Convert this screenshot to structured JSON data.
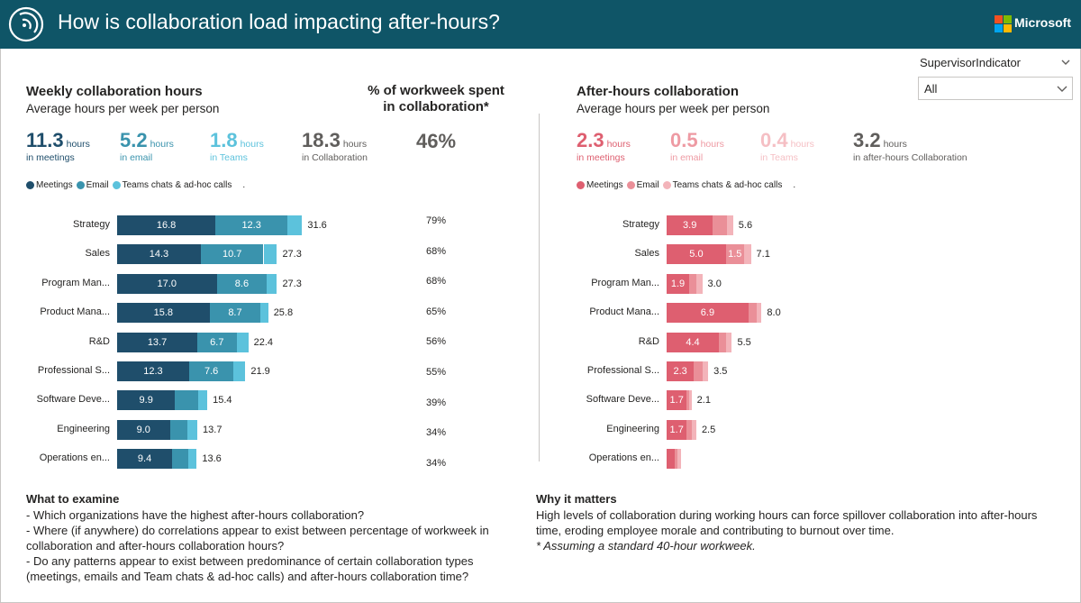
{
  "header": {
    "title": "How is collaboration load impacting after-hours?",
    "brand": "Microsoft",
    "bg_color": "#0f5567"
  },
  "slicer": {
    "label": "SupervisorIndicator",
    "value": "All"
  },
  "left": {
    "title": "Weekly collaboration hours",
    "subtitle": "Average hours per week per person",
    "pct_title_line1": "% of workweek spent",
    "pct_title_line2": "in collaboration*",
    "kpis": [
      {
        "value": "11.3",
        "unit": "hours",
        "caption": "in meetings",
        "color": "#1f4e6b"
      },
      {
        "value": "5.2",
        "unit": "hours",
        "caption": "in email",
        "color": "#3a93ad"
      },
      {
        "value": "1.8",
        "unit": "hours",
        "caption": "in Teams",
        "color": "#5cc2dc"
      },
      {
        "value": "18.3",
        "unit": "hours",
        "caption": "in Collaboration",
        "color": "#605e5c"
      }
    ],
    "pct_kpi": "46%",
    "legend": [
      {
        "label": "Meetings",
        "color": "#1f4e6b"
      },
      {
        "label": "Email",
        "color": "#3a93ad"
      },
      {
        "label": "Teams chats & ad-hoc calls",
        "color": "#5cc2dc"
      }
    ],
    "legend_trailing": "."
  },
  "right": {
    "title": "After-hours collaboration",
    "subtitle": "Average hours per week per person",
    "kpis": [
      {
        "value": "2.3",
        "unit": "hours",
        "caption": "in meetings",
        "color": "#de5f70"
      },
      {
        "value": "0.5",
        "unit": "hours",
        "caption": "in email",
        "color": "#ee9aa3"
      },
      {
        "value": "0.4",
        "unit": "hours",
        "caption": "in Teams",
        "color": "#f5bfc4"
      },
      {
        "value": "3.2",
        "unit": "hours",
        "caption": "in after-hours Collaboration",
        "color": "#605e5c"
      }
    ],
    "legend": [
      {
        "label": "Meetings",
        "color": "#de5f70"
      },
      {
        "label": "Email",
        "color": "#ea8f98"
      },
      {
        "label": "Teams chats & ad-hoc calls",
        "color": "#f3b4ba"
      }
    ],
    "legend_trailing": "."
  },
  "chart_data": [
    {
      "type": "bar",
      "title": "Weekly collaboration hours",
      "orientation": "horizontal-stacked",
      "categories": [
        "Strategy",
        "Sales",
        "Program Man...",
        "Product Mana...",
        "R&D",
        "Professional S...",
        "Software Deve...",
        "Engineering",
        "Operations en..."
      ],
      "series": [
        {
          "name": "Meetings",
          "color": "#1f4e6b",
          "values": [
            16.8,
            14.3,
            17.0,
            15.8,
            13.7,
            12.3,
            9.9,
            9.0,
            9.4
          ],
          "labels": [
            "16.8",
            "14.3",
            "17.0",
            "15.8",
            "13.7",
            "12.3",
            "9.9",
            "9.0",
            "9.4"
          ]
        },
        {
          "name": "Email",
          "color": "#3a93ad",
          "values": [
            12.3,
            10.7,
            8.6,
            8.7,
            6.7,
            7.6,
            3.9,
            3.0,
            2.8
          ],
          "labels": [
            "12.3",
            "10.7",
            "8.6",
            "8.7",
            "6.7",
            "7.6",
            "",
            "",
            ""
          ]
        },
        {
          "name": "Teams chats & ad-hoc calls",
          "color": "#5cc2dc",
          "values": [
            2.5,
            2.3,
            1.7,
            1.3,
            2.0,
            2.0,
            1.6,
            1.7,
            1.4
          ],
          "labels": [
            "",
            "",
            "",
            "",
            "",
            "",
            "",
            "",
            ""
          ]
        }
      ],
      "totals": [
        "31.6",
        "27.3",
        "27.3",
        "25.8",
        "22.4",
        "21.9",
        "15.4",
        "13.7",
        "13.6"
      ],
      "pct_workweek": [
        "79%",
        "68%",
        "68%",
        "65%",
        "56%",
        "55%",
        "39%",
        "34%",
        "34%"
      ],
      "xlim": [
        0,
        40
      ]
    },
    {
      "type": "bar",
      "title": "After-hours collaboration",
      "orientation": "horizontal-stacked",
      "categories": [
        "Strategy",
        "Sales",
        "Program Man...",
        "Product Mana...",
        "R&D",
        "Professional S...",
        "Software Deve...",
        "Engineering",
        "Operations en..."
      ],
      "series": [
        {
          "name": "Meetings",
          "color": "#de5f70",
          "values": [
            3.9,
            5.0,
            1.9,
            6.9,
            4.4,
            2.3,
            1.7,
            1.7,
            0.7
          ],
          "labels": [
            "3.9",
            "5.0",
            "1.9",
            "6.9",
            "4.4",
            "2.3",
            "1.7",
            "1.7",
            ""
          ]
        },
        {
          "name": "Email",
          "color": "#ea8f98",
          "values": [
            1.2,
            1.5,
            0.6,
            0.7,
            0.6,
            0.7,
            0.2,
            0.4,
            0.2
          ],
          "labels": [
            "",
            "1.5",
            "",
            "",
            "",
            "",
            "",
            "",
            ""
          ]
        },
        {
          "name": "Teams chats & ad-hoc calls",
          "color": "#f3b4ba",
          "values": [
            0.5,
            0.6,
            0.5,
            0.4,
            0.5,
            0.5,
            0.2,
            0.4,
            0.3
          ],
          "labels": [
            "",
            "",
            "",
            "",
            "",
            "",
            "",
            "",
            ""
          ]
        }
      ],
      "totals": [
        "5.6",
        "7.1",
        "3.0",
        "8.0",
        "5.5",
        "3.5",
        "2.1",
        "2.5",
        ""
      ],
      "xlim": [
        0,
        8.5
      ]
    }
  ],
  "examine": {
    "title": "What to examine",
    "lines": [
      "- Which organizations have the highest after-hours collaboration?",
      "- Where (if anywhere) do correlations appear to exist between percentage of workweek in",
      "collaboration and after-hours collaboration hours?",
      "- Do any patterns appear to exist between predominance of certain collaboration types",
      "(meetings, emails and Team chats & ad-hoc calls) and after-hours collaboration time?"
    ]
  },
  "matters": {
    "title": "Why it matters",
    "lines": [
      "High levels of collaboration during working hours can force spillover collaboration into after-hours",
      "time, eroding employee morale and contributing to burnout over time."
    ],
    "footnote": "* Assuming a standard 40-hour workweek."
  }
}
